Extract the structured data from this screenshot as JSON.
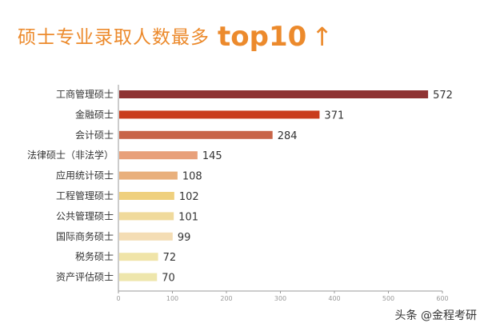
{
  "title": "硕士专业录取人数最多",
  "title_highlight": "top10",
  "title_icon": "up-arrow",
  "watermark": "头条 @金程考研",
  "chart_data": {
    "type": "bar",
    "orientation": "horizontal",
    "categories": [
      "工商管理硕士",
      "金融硕士",
      "会计硕士",
      "法律硕士（非法学）",
      "应用统计硕士",
      "工程管理硕士",
      "公共管理硕士",
      "国际商务硕士",
      "税务硕士",
      "资产评估硕士"
    ],
    "values": [
      572,
      371,
      284,
      145,
      108,
      102,
      101,
      99,
      72,
      70
    ],
    "colors": [
      "#8e3232",
      "#c93c1c",
      "#c86448",
      "#e8a07a",
      "#e9b07c",
      "#efd07e",
      "#f0da9c",
      "#f4ddb4",
      "#f0e4a8",
      "#eee6ac"
    ],
    "xlim": [
      0,
      600
    ],
    "xticks": [
      0,
      100,
      200,
      300,
      400,
      500,
      600
    ],
    "data_labels": true,
    "grid": false,
    "legend": "none"
  }
}
